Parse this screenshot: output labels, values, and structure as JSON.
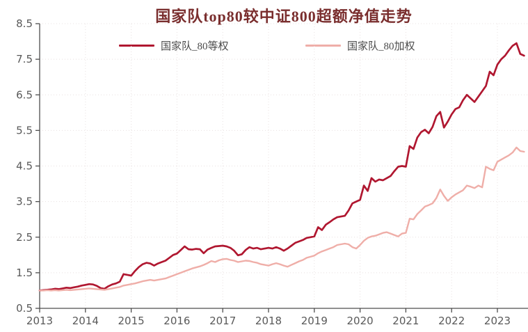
{
  "chart_data": {
    "type": "line",
    "title": "国家队top80较中证800超额净值走势",
    "title_color": "#7a2e2e",
    "grid": "dotted",
    "legend_position": "top-center",
    "frequency": "monthly",
    "x_axis": {
      "start_year": 2013,
      "tick_labels": [
        "2013",
        "2014",
        "2015",
        "2016",
        "2017",
        "2018",
        "2019",
        "2020",
        "2021",
        "2022",
        "2023"
      ]
    },
    "y_axis": {
      "min": 0.5,
      "max": 8.5,
      "tick_labels": [
        "0.5",
        "1.5",
        "2.5",
        "3.5",
        "4.5",
        "5.5",
        "6.5",
        "7.5",
        "8.5"
      ]
    },
    "series": [
      {
        "name": "国家队_80等权",
        "color": "#b01730",
        "values": [
          1.0,
          1.01,
          1.02,
          1.03,
          1.05,
          1.04,
          1.06,
          1.08,
          1.07,
          1.09,
          1.11,
          1.14,
          1.16,
          1.18,
          1.17,
          1.13,
          1.07,
          1.05,
          1.12,
          1.17,
          1.2,
          1.25,
          1.46,
          1.44,
          1.42,
          1.55,
          1.66,
          1.74,
          1.78,
          1.76,
          1.7,
          1.76,
          1.8,
          1.84,
          1.92,
          2.0,
          2.04,
          2.14,
          2.24,
          2.16,
          2.15,
          2.17,
          2.16,
          2.05,
          2.15,
          2.2,
          2.24,
          2.25,
          2.26,
          2.24,
          2.2,
          2.12,
          1.99,
          2.02,
          2.14,
          2.22,
          2.18,
          2.2,
          2.16,
          2.18,
          2.2,
          2.18,
          2.22,
          2.18,
          2.12,
          2.18,
          2.26,
          2.34,
          2.38,
          2.42,
          2.48,
          2.5,
          2.52,
          2.78,
          2.7,
          2.85,
          2.92,
          3.0,
          3.06,
          3.08,
          3.1,
          3.25,
          3.45,
          3.5,
          3.55,
          3.95,
          3.8,
          4.16,
          4.06,
          4.12,
          4.1,
          4.16,
          4.22,
          4.36,
          4.48,
          4.5,
          4.48,
          5.06,
          4.98,
          5.3,
          5.45,
          5.52,
          5.42,
          5.6,
          5.9,
          6.02,
          5.58,
          5.75,
          5.95,
          6.1,
          6.15,
          6.35,
          6.5,
          6.4,
          6.3,
          6.45,
          6.6,
          6.75,
          7.15,
          7.05,
          7.35,
          7.5,
          7.6,
          7.75,
          7.88,
          7.95,
          7.65,
          7.6
        ]
      },
      {
        "name": "国家队_80加权",
        "color": "#efaea8",
        "values": [
          1.0,
          1.0,
          1.01,
          1.0,
          1.01,
          1.0,
          1.01,
          1.02,
          1.01,
          1.02,
          1.03,
          1.04,
          1.05,
          1.06,
          1.05,
          1.04,
          1.03,
          1.02,
          1.04,
          1.06,
          1.08,
          1.1,
          1.14,
          1.16,
          1.18,
          1.2,
          1.23,
          1.26,
          1.28,
          1.3,
          1.28,
          1.3,
          1.32,
          1.34,
          1.38,
          1.42,
          1.46,
          1.5,
          1.54,
          1.58,
          1.62,
          1.65,
          1.68,
          1.72,
          1.77,
          1.83,
          1.8,
          1.85,
          1.88,
          1.89,
          1.86,
          1.84,
          1.8,
          1.82,
          1.84,
          1.83,
          1.8,
          1.78,
          1.74,
          1.72,
          1.7,
          1.74,
          1.77,
          1.74,
          1.7,
          1.67,
          1.72,
          1.77,
          1.82,
          1.86,
          1.92,
          1.95,
          1.98,
          2.05,
          2.1,
          2.14,
          2.18,
          2.22,
          2.28,
          2.3,
          2.32,
          2.3,
          2.22,
          2.18,
          2.28,
          2.4,
          2.48,
          2.52,
          2.54,
          2.58,
          2.62,
          2.64,
          2.6,
          2.56,
          2.52,
          2.6,
          2.62,
          3.02,
          3.0,
          3.15,
          3.25,
          3.36,
          3.4,
          3.45,
          3.6,
          3.84,
          3.66,
          3.52,
          3.62,
          3.7,
          3.76,
          3.82,
          3.95,
          3.92,
          3.88,
          3.95,
          3.9,
          4.48,
          4.42,
          4.38,
          4.62,
          4.68,
          4.74,
          4.8,
          4.88,
          5.02,
          4.92,
          4.9
        ]
      }
    ]
  }
}
